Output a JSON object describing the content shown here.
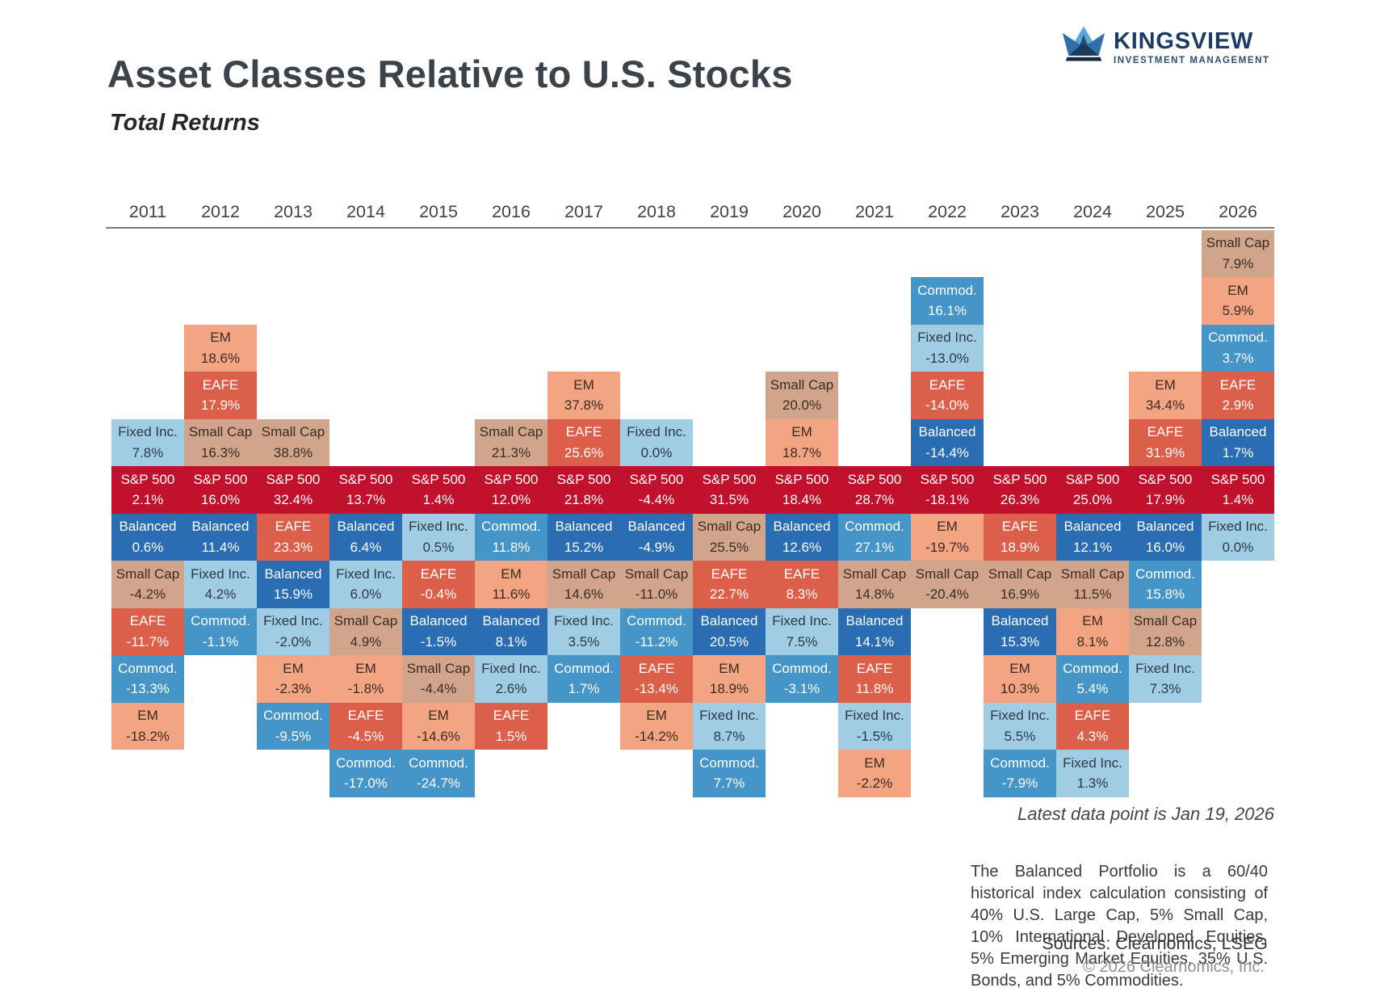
{
  "logo": {
    "brand": "KINGSVIEW",
    "tagline": "INVESTMENT MANAGEMENT"
  },
  "header": {
    "title": "Asset Classes Relative to U.S. Stocks",
    "subtitle": "Total Returns"
  },
  "footer": {
    "latest_note": "Latest data point is Jan 19, 2026",
    "balanced_note": "The Balanced Portfolio is a 60/40 historical index calculation consisting of 40% U.S. Large Cap, 5% Small Cap, 10% International Developed Equities, 5% Emerging Market Equities, 35% U.S. Bonds, and 5% Commodities.",
    "sources": "Sources: Clearnomics, LSEG",
    "copyright": "© 2026 Clearnomics, Inc."
  },
  "asset_styles": {
    "S&P 500": {
      "bg": "#c1122d",
      "text": "#ffffff"
    },
    "EAFE": {
      "bg": "#dc6049",
      "text": "#ffffff"
    },
    "EM": {
      "bg": "#f3a482",
      "text": "#3a2c23"
    },
    "Small Cap": {
      "bg": "#d1a58c",
      "text": "#3a2c23"
    },
    "Fixed Inc.": {
      "bg": "#a0cce4",
      "text": "#2c3945"
    },
    "Balanced": {
      "bg": "#2a6db3",
      "text": "#ffffff"
    },
    "Commod.": {
      "bg": "#4695c8",
      "text": "#ffffff"
    }
  },
  "chart_data": {
    "type": "table",
    "title": "Asset Classes Relative to U.S. Stocks",
    "subtitle": "Total Returns",
    "unit": "% total return",
    "center_row_asset": "S&P 500",
    "layout": "quilt columns per year; cells above the S&P 500 band outperformed U.S. stocks, cells below underperformed; sorted by return within each year",
    "years": [
      {
        "year": "2011",
        "above": [
          {
            "asset": "Fixed Inc.",
            "return_pct": 7.8
          }
        ],
        "sp500": 2.1,
        "below": [
          {
            "asset": "Balanced",
            "return_pct": 0.6
          },
          {
            "asset": "Small Cap",
            "return_pct": -4.2
          },
          {
            "asset": "EAFE",
            "return_pct": -11.7
          },
          {
            "asset": "Commod.",
            "return_pct": -13.3
          },
          {
            "asset": "EM",
            "return_pct": -18.2
          }
        ]
      },
      {
        "year": "2012",
        "above": [
          {
            "asset": "EM",
            "return_pct": 18.6
          },
          {
            "asset": "EAFE",
            "return_pct": 17.9
          },
          {
            "asset": "Small Cap",
            "return_pct": 16.3
          }
        ],
        "sp500": 16.0,
        "below": [
          {
            "asset": "Balanced",
            "return_pct": 11.4
          },
          {
            "asset": "Fixed Inc.",
            "return_pct": 4.2
          },
          {
            "asset": "Commod.",
            "return_pct": -1.1
          }
        ]
      },
      {
        "year": "2013",
        "above": [
          {
            "asset": "Small Cap",
            "return_pct": 38.8
          }
        ],
        "sp500": 32.4,
        "below": [
          {
            "asset": "EAFE",
            "return_pct": 23.3
          },
          {
            "asset": "Balanced",
            "return_pct": 15.9
          },
          {
            "asset": "Fixed Inc.",
            "return_pct": -2.0
          },
          {
            "asset": "EM",
            "return_pct": -2.3
          },
          {
            "asset": "Commod.",
            "return_pct": -9.5
          }
        ]
      },
      {
        "year": "2014",
        "above": [],
        "sp500": 13.7,
        "below": [
          {
            "asset": "Balanced",
            "return_pct": 6.4
          },
          {
            "asset": "Fixed Inc.",
            "return_pct": 6.0
          },
          {
            "asset": "Small Cap",
            "return_pct": 4.9
          },
          {
            "asset": "EM",
            "return_pct": -1.8
          },
          {
            "asset": "EAFE",
            "return_pct": -4.5
          },
          {
            "asset": "Commod.",
            "return_pct": -17.0
          }
        ]
      },
      {
        "year": "2015",
        "above": [],
        "sp500": 1.4,
        "below": [
          {
            "asset": "Fixed Inc.",
            "return_pct": 0.5
          },
          {
            "asset": "EAFE",
            "return_pct": -0.4
          },
          {
            "asset": "Balanced",
            "return_pct": -1.5
          },
          {
            "asset": "Small Cap",
            "return_pct": -4.4
          },
          {
            "asset": "EM",
            "return_pct": -14.6
          },
          {
            "asset": "Commod.",
            "return_pct": -24.7
          }
        ]
      },
      {
        "year": "2016",
        "above": [
          {
            "asset": "Small Cap",
            "return_pct": 21.3
          }
        ],
        "sp500": 12.0,
        "below": [
          {
            "asset": "Commod.",
            "return_pct": 11.8
          },
          {
            "asset": "EM",
            "return_pct": 11.6
          },
          {
            "asset": "Balanced",
            "return_pct": 8.1
          },
          {
            "asset": "Fixed Inc.",
            "return_pct": 2.6
          },
          {
            "asset": "EAFE",
            "return_pct": 1.5
          }
        ]
      },
      {
        "year": "2017",
        "above": [
          {
            "asset": "EM",
            "return_pct": 37.8
          },
          {
            "asset": "EAFE",
            "return_pct": 25.6
          }
        ],
        "sp500": 21.8,
        "below": [
          {
            "asset": "Balanced",
            "return_pct": 15.2
          },
          {
            "asset": "Small Cap",
            "return_pct": 14.6
          },
          {
            "asset": "Fixed Inc.",
            "return_pct": 3.5
          },
          {
            "asset": "Commod.",
            "return_pct": 1.7
          }
        ]
      },
      {
        "year": "2018",
        "above": [
          {
            "asset": "Fixed Inc.",
            "return_pct": 0.0
          }
        ],
        "sp500": -4.4,
        "below": [
          {
            "asset": "Balanced",
            "return_pct": -4.9
          },
          {
            "asset": "Small Cap",
            "return_pct": -11.0
          },
          {
            "asset": "Commod.",
            "return_pct": -11.2
          },
          {
            "asset": "EAFE",
            "return_pct": -13.4
          },
          {
            "asset": "EM",
            "return_pct": -14.2
          }
        ]
      },
      {
        "year": "2019",
        "above": [],
        "sp500": 31.5,
        "below": [
          {
            "asset": "Small Cap",
            "return_pct": 25.5
          },
          {
            "asset": "EAFE",
            "return_pct": 22.7
          },
          {
            "asset": "Balanced",
            "return_pct": 20.5
          },
          {
            "asset": "EM",
            "return_pct": 18.9
          },
          {
            "asset": "Fixed Inc.",
            "return_pct": 8.7
          },
          {
            "asset": "Commod.",
            "return_pct": 7.7
          }
        ]
      },
      {
        "year": "2020",
        "above": [
          {
            "asset": "Small Cap",
            "return_pct": 20.0
          },
          {
            "asset": "EM",
            "return_pct": 18.7
          }
        ],
        "sp500": 18.4,
        "below": [
          {
            "asset": "Balanced",
            "return_pct": 12.6
          },
          {
            "asset": "EAFE",
            "return_pct": 8.3
          },
          {
            "asset": "Fixed Inc.",
            "return_pct": 7.5
          },
          {
            "asset": "Commod.",
            "return_pct": -3.1
          }
        ]
      },
      {
        "year": "2021",
        "above": [],
        "sp500": 28.7,
        "below": [
          {
            "asset": "Commod.",
            "return_pct": 27.1
          },
          {
            "asset": "Small Cap",
            "return_pct": 14.8
          },
          {
            "asset": "Balanced",
            "return_pct": 14.1
          },
          {
            "asset": "EAFE",
            "return_pct": 11.8
          },
          {
            "asset": "Fixed Inc.",
            "return_pct": -1.5
          },
          {
            "asset": "EM",
            "return_pct": -2.2
          }
        ]
      },
      {
        "year": "2022",
        "above": [
          {
            "asset": "Commod.",
            "return_pct": 16.1
          },
          {
            "asset": "Fixed Inc.",
            "return_pct": -13.0
          },
          {
            "asset": "EAFE",
            "return_pct": -14.0
          },
          {
            "asset": "Balanced",
            "return_pct": -14.4
          }
        ],
        "sp500": -18.1,
        "below": [
          {
            "asset": "EM",
            "return_pct": -19.7
          },
          {
            "asset": "Small Cap",
            "return_pct": -20.4
          }
        ]
      },
      {
        "year": "2023",
        "above": [],
        "sp500": 26.3,
        "below": [
          {
            "asset": "EAFE",
            "return_pct": 18.9
          },
          {
            "asset": "Small Cap",
            "return_pct": 16.9
          },
          {
            "asset": "Balanced",
            "return_pct": 15.3
          },
          {
            "asset": "EM",
            "return_pct": 10.3
          },
          {
            "asset": "Fixed Inc.",
            "return_pct": 5.5
          },
          {
            "asset": "Commod.",
            "return_pct": -7.9
          }
        ]
      },
      {
        "year": "2024",
        "above": [],
        "sp500": 25.0,
        "below": [
          {
            "asset": "Balanced",
            "return_pct": 12.1
          },
          {
            "asset": "Small Cap",
            "return_pct": 11.5
          },
          {
            "asset": "EM",
            "return_pct": 8.1
          },
          {
            "asset": "Commod.",
            "return_pct": 5.4
          },
          {
            "asset": "EAFE",
            "return_pct": 4.3
          },
          {
            "asset": "Fixed Inc.",
            "return_pct": 1.3
          }
        ]
      },
      {
        "year": "2025",
        "above": [
          {
            "asset": "EM",
            "return_pct": 34.4
          },
          {
            "asset": "EAFE",
            "return_pct": 31.9
          }
        ],
        "sp500": 17.9,
        "below": [
          {
            "asset": "Balanced",
            "return_pct": 16.0
          },
          {
            "asset": "Commod.",
            "return_pct": 15.8
          },
          {
            "asset": "Small Cap",
            "return_pct": 12.8
          },
          {
            "asset": "Fixed Inc.",
            "return_pct": 7.3
          }
        ]
      },
      {
        "year": "2026",
        "above": [
          {
            "asset": "Small Cap",
            "return_pct": 7.9
          },
          {
            "asset": "EM",
            "return_pct": 5.9
          },
          {
            "asset": "Commod.",
            "return_pct": 3.7
          },
          {
            "asset": "EAFE",
            "return_pct": 2.9
          },
          {
            "asset": "Balanced",
            "return_pct": 1.7
          }
        ],
        "sp500": 1.4,
        "below": [
          {
            "asset": "Fixed Inc.",
            "return_pct": 0.0
          }
        ]
      }
    ]
  }
}
